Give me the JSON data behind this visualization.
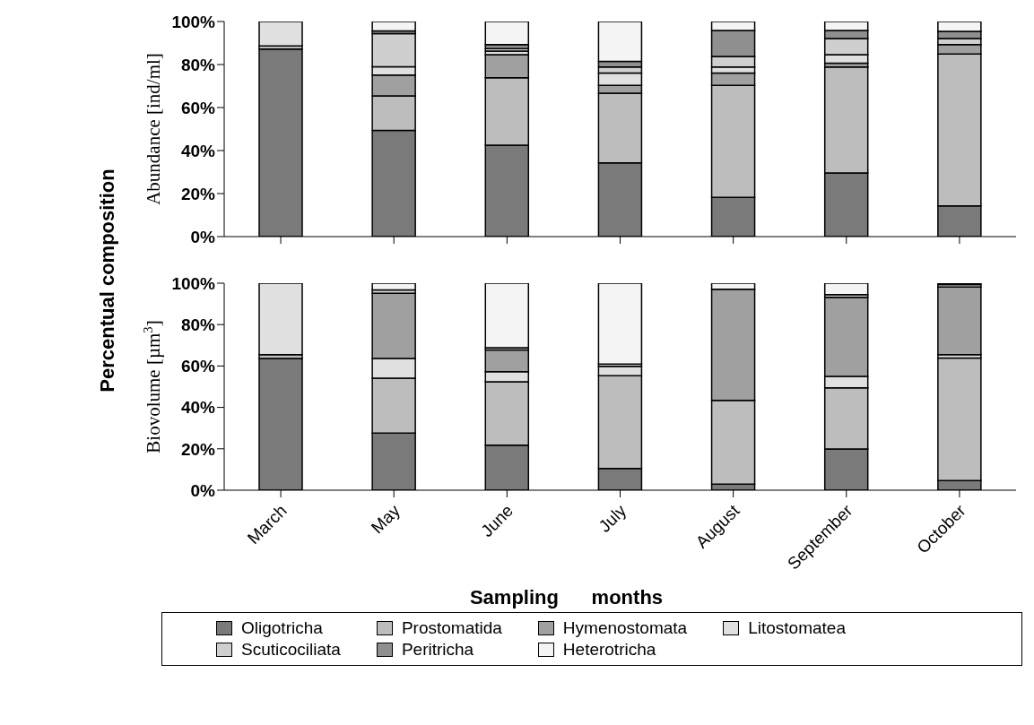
{
  "chart_data": [
    {
      "type": "bar",
      "stacked": true,
      "ylabel": "Abundance [ind/ml]",
      "annotations": [
        "Percentual composition"
      ],
      "categories": [
        null,
        null,
        null,
        null,
        null,
        null,
        null
      ],
      "ylim": [
        0,
        100
      ],
      "yticks": [
        {
          "value": 0,
          "label": "0%"
        },
        {
          "value": 20,
          "label": "20%"
        },
        {
          "value": 40,
          "label": "40%"
        },
        {
          "value": 60,
          "label": "60%"
        },
        {
          "value": 80,
          "label": "80%"
        },
        {
          "value": 100,
          "label": "100%"
        }
      ],
      "grid": false,
      "legend": "bottom",
      "series": [
        {
          "name": "Oligotricha",
          "color": "#7a7a7a",
          "values": [
            87.2,
            49.4,
            42.5,
            34.3,
            18.2,
            29.6,
            14.3
          ]
        },
        {
          "name": "Prostomatida",
          "color": "#bdbdbd",
          "values": [
            1.4,
            16,
            31.4,
            32.4,
            52.1,
            49.3,
            70.6
          ]
        },
        {
          "name": "Hymenostomata",
          "color": "#a0a0a0",
          "values": [
            0,
            9.7,
            10.7,
            3.6,
            5.7,
            1.7,
            4.4
          ]
        },
        {
          "name": "Litostomatea",
          "color": "#e0e0e0",
          "values": [
            11.4,
            3.9,
            1.6,
            5.7,
            2.9,
            4,
            0
          ]
        },
        {
          "name": "Scuticociliata",
          "color": "#cfcfcf",
          "values": [
            0,
            15.4,
            1.2,
            2.9,
            4.9,
            7.5,
            2.8
          ]
        },
        {
          "name": "Peritricha",
          "color": "#8f8f8f",
          "values": [
            0,
            1.2,
            1.9,
            2.6,
            12,
            3.7,
            3.3
          ]
        },
        {
          "name": "Heterotricha",
          "color": "#f4f4f4",
          "values": [
            0,
            4.4,
            10.7,
            18.5,
            4.2,
            4.2,
            4.6
          ]
        }
      ]
    },
    {
      "type": "bar",
      "stacked": true,
      "ylabel": "Biovolume [µm$^{3}$]",
      "xlabel": "Sampling      months",
      "categories": [
        "March",
        "May",
        "June",
        "July",
        "August",
        "September",
        "October"
      ],
      "ylim": [
        0,
        100
      ],
      "yticks": [
        {
          "value": 0,
          "label": "0%"
        },
        {
          "value": 20,
          "label": "20%"
        },
        {
          "value": 40,
          "label": "40%"
        },
        {
          "value": 60,
          "label": "60%"
        },
        {
          "value": 80,
          "label": "80%"
        },
        {
          "value": 100,
          "label": "100%"
        }
      ],
      "grid": false,
      "series": [
        {
          "color": "#7a7a7a",
          "values": [
            63.6,
            27.6,
            21.7,
            10.5,
            2.9,
            19.9,
            4.7
          ]
        },
        {
          "color": "#bdbdbd",
          "values": [
            1.9,
            26.5,
            30.7,
            44.8,
            40.5,
            29.6,
            59.1
          ]
        },
        {
          "color": "#e0e0e0",
          "values": [
            34.5,
            9.5,
            4.8,
            4.6,
            0,
            5.5,
            1.7
          ]
        },
        {
          "color": "#a0a0a0",
          "values": [
            0,
            31.5,
            10.6,
            0,
            53.7,
            38.2,
            32.7
          ]
        },
        {
          "color": "#cfcfcf",
          "values": [
            0,
            1.6,
            1,
            1,
            0,
            1.3,
            1.1
          ]
        },
        {
          "color": "#f4f4f4",
          "values": [
            0,
            3.3,
            31.2,
            39.1,
            2.9,
            5.5,
            0.7
          ]
        }
      ]
    }
  ]
}
